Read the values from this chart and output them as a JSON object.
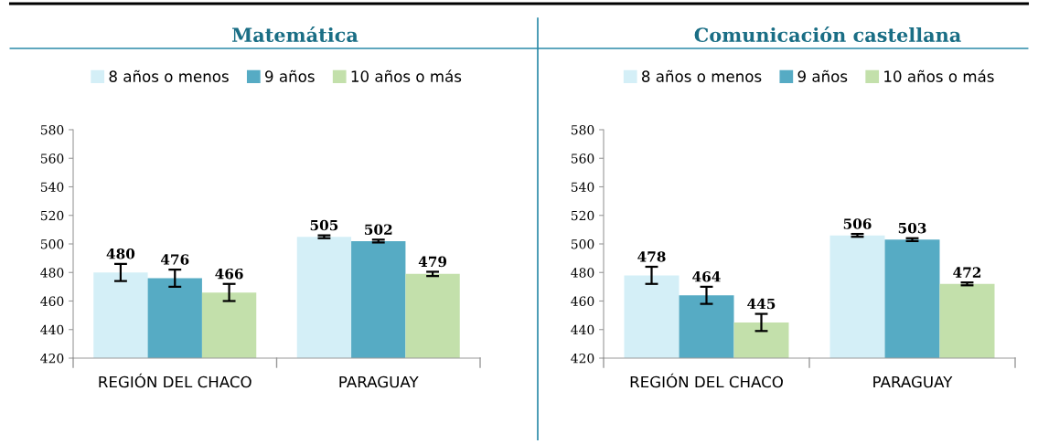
{
  "chart_data": [
    {
      "type": "bar",
      "title": "Matemática",
      "categories": [
        "REGIÓN DEL CHACO",
        "PARAGUAY"
      ],
      "series": [
        {
          "name": "8 años o menos",
          "color": "#d4eff7",
          "values": [
            480,
            505
          ],
          "errors": [
            6,
            1
          ]
        },
        {
          "name": "9 años",
          "color": "#56abc4",
          "values": [
            476,
            502
          ],
          "errors": [
            6,
            1
          ]
        },
        {
          "name": "10 años o más",
          "color": "#c3e0ab",
          "values": [
            466,
            479
          ],
          "errors": [
            6,
            1.5
          ]
        }
      ],
      "ylim": [
        420,
        580
      ],
      "yticks": [
        420,
        440,
        460,
        480,
        500,
        520,
        540,
        560,
        580
      ],
      "grid": false,
      "legend": "top",
      "data_labels": true
    },
    {
      "type": "bar",
      "title": "Comunicación castellana",
      "categories": [
        "REGIÓN DEL CHACO",
        "PARAGUAY"
      ],
      "series": [
        {
          "name": "8 años o menos",
          "color": "#d4eff7",
          "values": [
            478,
            506
          ],
          "errors": [
            6,
            1
          ]
        },
        {
          "name": "9 años",
          "color": "#56abc4",
          "values": [
            464,
            503
          ],
          "errors": [
            6,
            1
          ]
        },
        {
          "name": "10 años o más",
          "color": "#c3e0ab",
          "values": [
            445,
            472
          ],
          "errors": [
            6,
            1
          ]
        }
      ],
      "ylim": [
        420,
        580
      ],
      "yticks": [
        420,
        440,
        460,
        480,
        500,
        520,
        540,
        560,
        580
      ],
      "grid": false,
      "legend": "top",
      "data_labels": true
    }
  ]
}
